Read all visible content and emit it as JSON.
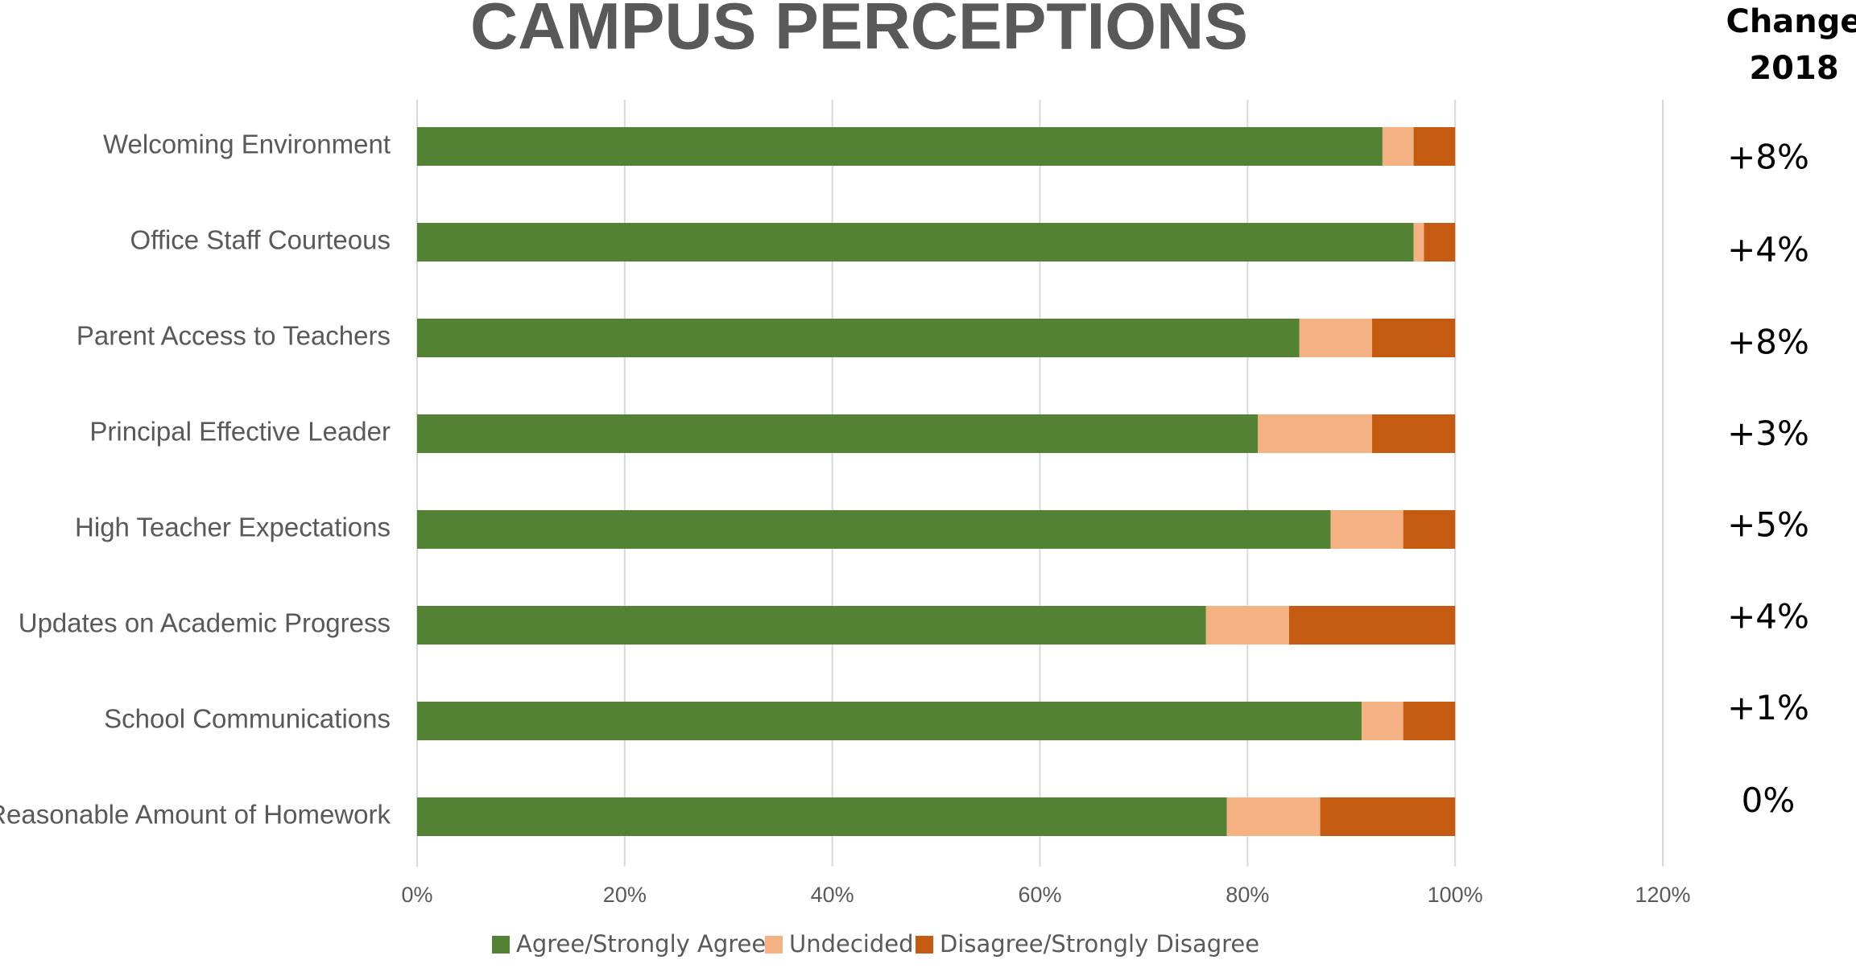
{
  "chart_data": {
    "type": "stacked_hbar",
    "title": "CAMPUS PERCEPTIONS",
    "categories": [
      "Welcoming Environment",
      "Office Staff Courteous",
      "Parent Access to Teachers",
      "Principal Effective Leader",
      "High Teacher Expectations",
      "Updates on Academic Progress",
      "School Communications",
      "Reasonable Amount of Homework"
    ],
    "series": [
      {
        "name": "Agree/Strongly Agree",
        "color": "#548235",
        "values": [
          93,
          96,
          85,
          81,
          88,
          76,
          91,
          78
        ]
      },
      {
        "name": "Undecided",
        "color": "#f4b183",
        "values": [
          3,
          1,
          7,
          11,
          7,
          8,
          4,
          9
        ]
      },
      {
        "name": "Disagree/Strongly Disagree",
        "color": "#c55a11",
        "values": [
          4,
          3,
          8,
          8,
          5,
          16,
          5,
          13
        ]
      }
    ],
    "xlim": [
      0,
      120
    ],
    "xticks": [
      {
        "value": 0,
        "label": "0%"
      },
      {
        "value": 20,
        "label": "20%"
      },
      {
        "value": 40,
        "label": "40%"
      },
      {
        "value": 60,
        "label": "60%"
      },
      {
        "value": 80,
        "label": "80%"
      },
      {
        "value": 100,
        "label": "100%"
      },
      {
        "value": 120,
        "label": "120%"
      }
    ],
    "grid": true,
    "legend": "bottom",
    "change_header": [
      "Change",
      "2018"
    ],
    "change_labels": [
      "+8%",
      "+4%",
      "+8%",
      "+3%",
      "+5%",
      "+4%",
      "+1%",
      "0%"
    ]
  }
}
